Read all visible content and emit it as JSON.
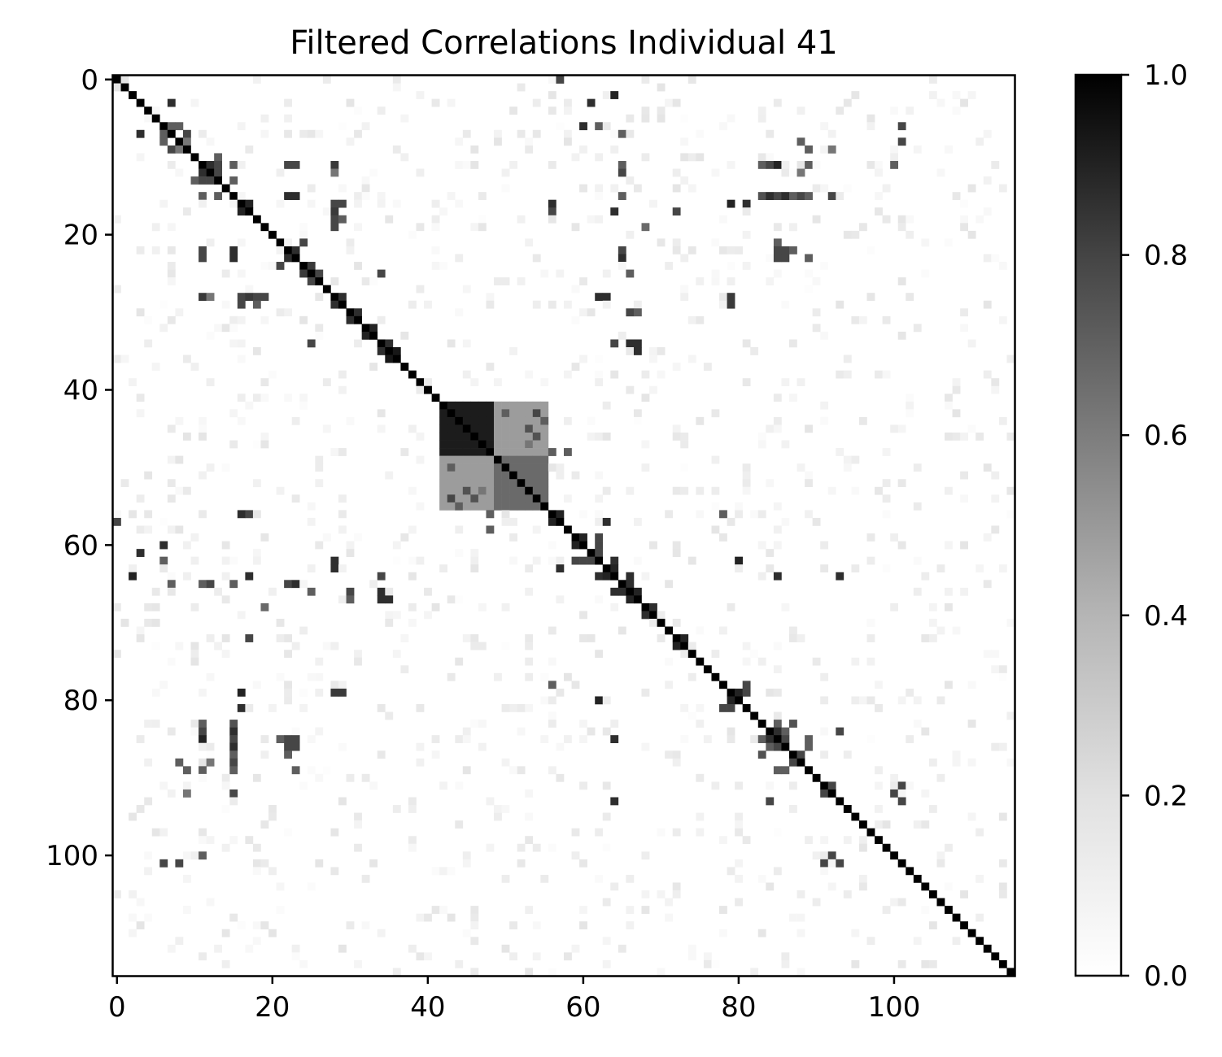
{
  "chart_data": {
    "type": "heatmap",
    "title": "Filtered Correlations Individual 41",
    "xlabel": "",
    "ylabel": "",
    "n": 116,
    "x_ticks": [
      0,
      20,
      40,
      60,
      80,
      100
    ],
    "y_ticks": [
      0,
      20,
      40,
      60,
      80,
      100
    ],
    "colorbar": {
      "range": [
        0.0,
        1.0
      ],
      "ticks": [
        "0.0",
        "0.2",
        "0.4",
        "0.6",
        "0.8",
        "1.0"
      ],
      "colormap": "Greys",
      "low_color": "#ffffff",
      "high_color": "#000000"
    },
    "diagonal_value": 1.0,
    "blocks": [
      {
        "rows": [
          42,
          48
        ],
        "cols": [
          42,
          48
        ],
        "value": 0.88
      },
      {
        "rows": [
          49,
          55
        ],
        "cols": [
          49,
          55
        ],
        "value": 0.55
      },
      {
        "rows": [
          42,
          48
        ],
        "cols": [
          49,
          55
        ],
        "value": 0.35
      },
      {
        "rows": [
          49,
          55
        ],
        "cols": [
          42,
          48
        ],
        "value": 0.35
      }
    ],
    "cells": [
      [
        0,
        57,
        0.7
      ],
      [
        3,
        61,
        0.8
      ],
      [
        2,
        64,
        0.85
      ],
      [
        6,
        60,
        0.8
      ],
      [
        6,
        62,
        0.6
      ],
      [
        7,
        3,
        0.8
      ],
      [
        7,
        9,
        0.7
      ],
      [
        8,
        6,
        0.6
      ],
      [
        9,
        7,
        0.6
      ],
      [
        11,
        12,
        0.8
      ],
      [
        11,
        13,
        0.7
      ],
      [
        11,
        15,
        0.6
      ],
      [
        11,
        22,
        0.7
      ],
      [
        11,
        28,
        0.75
      ],
      [
        11,
        84,
        0.7
      ],
      [
        11,
        85,
        0.85
      ],
      [
        11,
        89,
        0.6
      ],
      [
        11,
        100,
        0.6
      ],
      [
        13,
        10,
        0.6
      ],
      [
        13,
        12,
        0.7
      ],
      [
        13,
        15,
        0.6
      ],
      [
        15,
        22,
        0.8
      ],
      [
        15,
        23,
        0.8
      ],
      [
        15,
        65,
        0.6
      ],
      [
        15,
        84,
        0.8
      ],
      [
        15,
        86,
        0.8
      ],
      [
        15,
        88,
        0.7
      ],
      [
        15,
        92,
        0.7
      ],
      [
        16,
        17,
        0.85
      ],
      [
        16,
        28,
        0.7
      ],
      [
        16,
        29,
        0.7
      ],
      [
        16,
        79,
        0.85
      ],
      [
        16,
        81,
        0.8
      ],
      [
        16,
        56,
        0.8
      ],
      [
        17,
        64,
        0.8
      ],
      [
        17,
        72,
        0.7
      ],
      [
        18,
        29,
        0.6
      ],
      [
        19,
        68,
        0.5
      ],
      [
        6,
        101,
        0.7
      ],
      [
        8,
        101,
        0.7
      ],
      [
        12,
        65,
        0.7
      ],
      [
        6,
        7,
        0.6
      ],
      [
        9,
        8,
        0.5
      ],
      [
        22,
        11,
        0.7
      ],
      [
        22,
        15,
        0.7
      ],
      [
        22,
        23,
        0.8
      ],
      [
        22,
        65,
        0.7
      ],
      [
        22,
        86,
        0.6
      ],
      [
        22,
        87,
        0.6
      ],
      [
        23,
        11,
        0.7
      ],
      [
        23,
        15,
        0.8
      ],
      [
        23,
        65,
        0.8
      ],
      [
        24,
        25,
        0.75
      ],
      [
        25,
        34,
        0.7
      ],
      [
        25,
        66,
        0.6
      ],
      [
        28,
        12,
        0.5
      ],
      [
        28,
        16,
        0.7
      ],
      [
        28,
        17,
        0.75
      ],
      [
        28,
        18,
        0.7
      ],
      [
        28,
        19,
        0.7
      ],
      [
        28,
        29,
        0.8
      ],
      [
        28,
        62,
        0.8
      ],
      [
        28,
        63,
        0.8
      ],
      [
        28,
        79,
        0.7
      ],
      [
        29,
        16,
        0.6
      ],
      [
        29,
        79,
        0.6
      ],
      [
        30,
        66,
        0.7
      ],
      [
        30,
        67,
        0.6
      ],
      [
        31,
        30,
        0.8
      ],
      [
        33,
        32,
        0.85
      ],
      [
        34,
        35,
        0.8
      ],
      [
        34,
        64,
        0.7
      ],
      [
        34,
        66,
        0.8
      ],
      [
        34,
        67,
        0.8
      ],
      [
        35,
        67,
        0.8
      ],
      [
        36,
        35,
        0.9
      ],
      [
        43,
        50,
        0.6
      ],
      [
        43,
        54,
        0.7
      ],
      [
        44,
        55,
        0.6
      ],
      [
        45,
        53,
        0.65
      ],
      [
        46,
        54,
        0.65
      ],
      [
        47,
        53,
        0.5
      ],
      [
        48,
        56,
        0.6
      ],
      [
        56,
        57,
        0.85
      ],
      [
        56,
        16,
        0.7
      ],
      [
        56,
        17,
        0.7
      ],
      [
        56,
        78,
        0.6
      ],
      [
        57,
        63,
        0.8
      ],
      [
        58,
        48,
        0.6
      ],
      [
        59,
        60,
        0.85
      ],
      [
        60,
        59,
        0.85
      ],
      [
        61,
        62,
        0.7
      ],
      [
        60,
        62,
        0.7
      ],
      [
        62,
        59,
        0.7
      ],
      [
        62,
        80,
        0.85
      ],
      [
        63,
        64,
        0.85
      ],
      [
        64,
        62,
        0.8
      ],
      [
        65,
        7,
        0.6
      ],
      [
        65,
        11,
        0.6
      ],
      [
        65,
        15,
        0.5
      ],
      [
        65,
        22,
        0.7
      ],
      [
        65,
        23,
        0.7
      ],
      [
        66,
        64,
        0.8
      ],
      [
        66,
        65,
        0.8
      ],
      [
        67,
        66,
        0.85
      ],
      [
        66,
        25,
        0.6
      ],
      [
        67,
        30,
        0.6
      ],
      [
        67,
        35,
        0.75
      ],
      [
        68,
        19,
        0.55
      ],
      [
        69,
        68,
        0.8
      ],
      [
        72,
        17,
        0.6
      ],
      [
        73,
        72,
        0.85
      ],
      [
        78,
        56,
        0.6
      ],
      [
        79,
        80,
        0.85
      ],
      [
        79,
        81,
        0.7
      ],
      [
        79,
        16,
        0.8
      ],
      [
        79,
        28,
        0.75
      ],
      [
        79,
        29,
        0.75
      ],
      [
        80,
        62,
        0.85
      ],
      [
        81,
        78,
        0.7
      ],
      [
        81,
        16,
        0.7
      ],
      [
        83,
        11,
        0.6
      ],
      [
        83,
        15,
        0.65
      ],
      [
        83,
        85,
        0.6
      ],
      [
        83,
        87,
        0.65
      ],
      [
        85,
        11,
        0.8
      ],
      [
        85,
        15,
        0.7
      ],
      [
        85,
        22,
        0.7
      ],
      [
        85,
        23,
        0.7
      ],
      [
        85,
        64,
        0.8
      ],
      [
        85,
        84,
        0.8
      ],
      [
        85,
        89,
        0.6
      ],
      [
        86,
        22,
        0.7
      ],
      [
        86,
        23,
        0.7
      ],
      [
        86,
        84,
        0.6
      ],
      [
        86,
        85,
        0.7
      ],
      [
        87,
        15,
        0.6
      ],
      [
        87,
        88,
        0.7
      ],
      [
        88,
        8,
        0.6
      ],
      [
        89,
        9,
        0.6
      ],
      [
        89,
        11,
        0.6
      ],
      [
        89,
        15,
        0.6
      ],
      [
        89,
        23,
        0.6
      ],
      [
        89,
        86,
        0.6
      ],
      [
        91,
        92,
        0.7
      ],
      [
        92,
        9,
        0.5
      ],
      [
        92,
        15,
        0.6
      ],
      [
        92,
        100,
        0.7
      ],
      [
        93,
        64,
        0.8
      ],
      [
        93,
        84,
        0.7
      ],
      [
        93,
        101,
        0.7
      ],
      [
        101,
        91,
        0.7
      ],
      [
        101,
        93,
        0.7
      ],
      [
        100,
        11,
        0.5
      ],
      [
        21,
        85,
        0.6
      ],
      [
        22,
        86,
        0.6
      ],
      [
        23,
        89,
        0.55
      ],
      [
        12,
        88,
        0.5
      ],
      [
        21,
        24,
        0.7
      ],
      [
        26,
        25,
        0.7
      ]
    ],
    "noise": {
      "seed": 41,
      "density": 0.09,
      "max_value": 0.08
    }
  }
}
